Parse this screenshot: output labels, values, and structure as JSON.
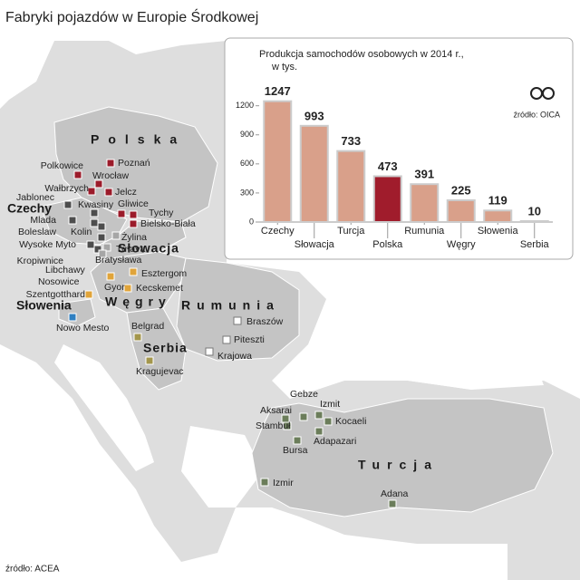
{
  "header": {
    "title": "Fabryki pojazdów w Europie Środkowej"
  },
  "source": "źródło: ACEA",
  "map": {
    "countries": [
      "Polska",
      "Czechy",
      "Słowacja",
      "Węgry",
      "Rumunia",
      "Słowenia",
      "Serbia",
      "Turcja"
    ],
    "cities": [
      {
        "label": "Poznań",
        "color": "#9b1b2a"
      },
      {
        "label": "Polkowice",
        "color": "#9b1b2a"
      },
      {
        "label": "Wrocław",
        "color": "#9b1b2a"
      },
      {
        "label": "Wałbrzych",
        "color": "#9b1b2a"
      },
      {
        "label": "Jelcz",
        "color": "#9b1b2a"
      },
      {
        "label": "Gliwice",
        "color": "#9b1b2a"
      },
      {
        "label": "Tychy",
        "color": "#9b1b2a"
      },
      {
        "label": "Bielsko-Biała",
        "color": "#9b1b2a"
      },
      {
        "label": "Jablonec",
        "color": "#4d4d4d"
      },
      {
        "label": "Kwasiny",
        "color": "#4d4d4d"
      },
      {
        "label": "Mlada",
        "color": "#4d4d4d"
      },
      {
        "label": "Boleslaw",
        "color": "#4d4d4d"
      },
      {
        "label": "Kolin",
        "color": "#4d4d4d"
      },
      {
        "label": "Wysoke Myto",
        "color": "#4d4d4d"
      },
      {
        "label": "Kropiwnice",
        "color": "#4d4d4d"
      },
      {
        "label": "Libchawy",
        "color": "#4d4d4d"
      },
      {
        "label": "Nosowice",
        "color": "#4d4d4d"
      },
      {
        "label": "Żylina",
        "color": "#a6a6a6"
      },
      {
        "label": "Trnava",
        "color": "#a6a6a6"
      },
      {
        "label": "Bratysława",
        "color": "#a6a6a6"
      },
      {
        "label": "Esztergom",
        "color": "#e0a43a"
      },
      {
        "label": "Kecskemet",
        "color": "#e0a43a"
      },
      {
        "label": "Gyor",
        "color": "#e0a43a"
      },
      {
        "label": "Szentgotthard",
        "color": "#e0a43a"
      },
      {
        "label": "Nowo Mesto",
        "color": "#2f7fc1"
      },
      {
        "label": "Belgrad",
        "color": "#a3964c"
      },
      {
        "label": "Kragujevac",
        "color": "#a3964c"
      },
      {
        "label": "Braszów",
        "color": "#ffffff"
      },
      {
        "label": "Piteszti",
        "color": "#ffffff"
      },
      {
        "label": "Krajowa",
        "color": "#ffffff"
      },
      {
        "label": "Gebze",
        "color": "#6b7d5a"
      },
      {
        "label": "Izmit",
        "color": "#6b7d5a"
      },
      {
        "label": "Aksarai",
        "color": "#6b7d5a"
      },
      {
        "label": "Stambuł",
        "color": "#6b7d5a"
      },
      {
        "label": "Kocaeli",
        "color": "#6b7d5a"
      },
      {
        "label": "Adapazari",
        "color": "#6b7d5a"
      },
      {
        "label": "Bursa",
        "color": "#6b7d5a"
      },
      {
        "label": "Izmir",
        "color": "#6b7d5a"
      },
      {
        "label": "Adana",
        "color": "#6b7d5a"
      }
    ]
  },
  "chart_data": {
    "type": "bar",
    "title": "Produkcja samochodów osobowych w 2014 r., w tys.",
    "source": "źródło: OICA",
    "categories": [
      "Czechy",
      "Słowacja",
      "Turcja",
      "Polska",
      "Rumunia",
      "Węgry",
      "Słowenia",
      "Serbia"
    ],
    "values": [
      1247,
      993,
      733,
      473,
      391,
      225,
      119,
      10
    ],
    "colors": [
      "#d9a08a",
      "#d9a08a",
      "#d9a08a",
      "#a01c2c",
      "#d9a08a",
      "#d9a08a",
      "#d9a08a",
      "#d9a08a"
    ],
    "ylim": [
      0,
      1300
    ],
    "yticks": [
      0,
      300,
      600,
      900,
      1200
    ]
  }
}
